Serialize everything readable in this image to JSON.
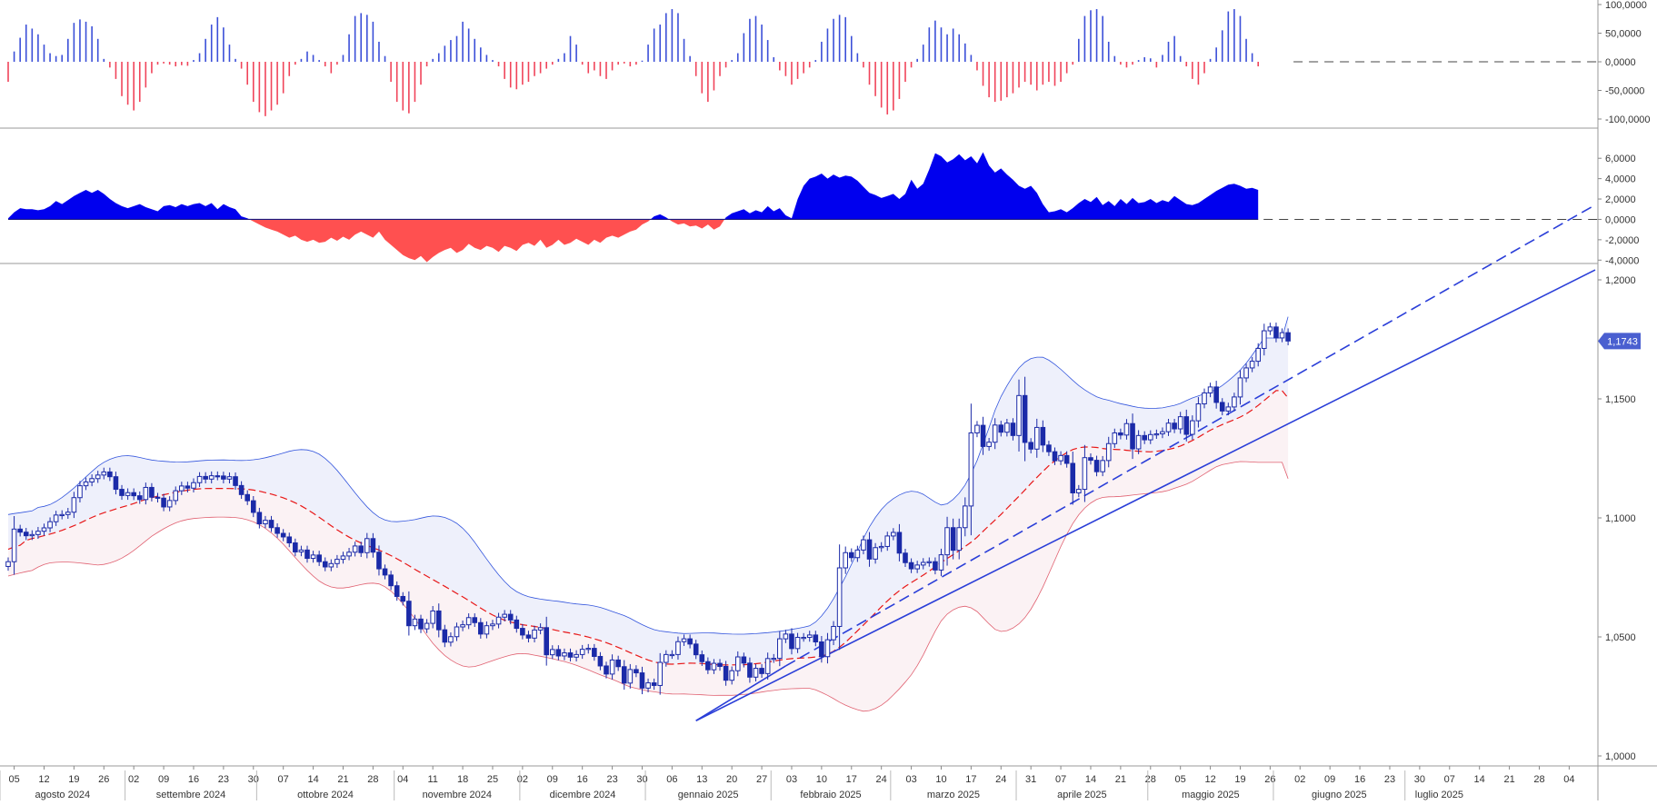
{
  "colors": {
    "up": "#3b4fd8",
    "down": "#f0445a",
    "area_up": "#0000ee",
    "area_down": "#ff5050",
    "candle_body": "#1b2aa8",
    "band_upper": "#3355dd",
    "band_lower": "#e06070",
    "band_fill_top": "#eef0fb",
    "band_fill_bottom": "#fbf2f4",
    "mid_line": "#e81818",
    "trend": "#2a3ed8",
    "axis": "#888888",
    "grid": "#dddddd"
  },
  "osc1": {
    "ticks": [
      "100,0000",
      "50,0000",
      "0,0000",
      "-50,0000",
      "-100,0000"
    ]
  },
  "osc2": {
    "ticks": [
      "6,0000",
      "4,0000",
      "2,0000",
      "0,0000",
      "-2,0000",
      "-4,0000"
    ]
  },
  "price": {
    "ticks": [
      "1,2000",
      "1,1500",
      "1,1000",
      "1,0500",
      "1,0000"
    ],
    "last_label": "1,1743"
  },
  "x_axis": {
    "days": [
      "05",
      "12",
      "19",
      "26",
      "02",
      "09",
      "16",
      "23",
      "30",
      "07",
      "14",
      "21",
      "28",
      "04",
      "11",
      "18",
      "25",
      "02",
      "09",
      "16",
      "23",
      "30",
      "06",
      "13",
      "20",
      "27",
      "03",
      "10",
      "17",
      "24",
      "03",
      "10",
      "17",
      "24",
      "31",
      "07",
      "14",
      "21",
      "28",
      "05",
      "12",
      "19",
      "26",
      "02",
      "09",
      "16",
      "23",
      "30",
      "07",
      "14",
      "21",
      "28",
      "04"
    ],
    "months": [
      "agosto 2024",
      "settembre 2024",
      "ottobre 2024",
      "novembre 2024",
      "dicembre 2024",
      "gennaio 2025",
      "febbraio 2025",
      "marzo 2025",
      "aprile 2025",
      "maggio 2025",
      "giugno 2025",
      "luglio 2025"
    ]
  },
  "chart_data": [
    {
      "type": "bar",
      "panel": "oscillator-histogram",
      "ylim": [
        -100,
        100
      ],
      "values": [
        -35,
        18,
        42,
        65,
        58,
        48,
        30,
        15,
        10,
        12,
        40,
        68,
        74,
        70,
        62,
        40,
        5,
        -10,
        -30,
        -60,
        -75,
        -85,
        -70,
        -45,
        -20,
        -5,
        -3,
        -5,
        -8,
        -6,
        -7,
        3,
        15,
        40,
        65,
        78,
        60,
        30,
        5,
        -12,
        -40,
        -70,
        -88,
        -95,
        -85,
        -75,
        -55,
        -25,
        -5,
        5,
        18,
        12,
        3,
        -8,
        -20,
        -5,
        12,
        48,
        80,
        85,
        82,
        70,
        35,
        10,
        -35,
        -70,
        -85,
        -90,
        -70,
        -40,
        -8,
        5,
        15,
        28,
        38,
        45,
        70,
        58,
        40,
        25,
        12,
        3,
        -8,
        -30,
        -45,
        -48,
        -40,
        -35,
        -25,
        -20,
        -12,
        -5,
        5,
        15,
        45,
        30,
        -5,
        -20,
        -15,
        -25,
        -30,
        -15,
        -5,
        -3,
        -8,
        -5,
        2,
        30,
        58,
        65,
        85,
        92,
        85,
        40,
        10,
        -25,
        -55,
        -70,
        -50,
        -25,
        -10,
        3,
        15,
        50,
        75,
        80,
        65,
        38,
        8,
        -15,
        -25,
        -40,
        -30,
        -20,
        -10,
        3,
        35,
        58,
        75,
        82,
        78,
        45,
        15,
        -10,
        -40,
        -60,
        -80,
        -92,
        -85,
        -65,
        -35,
        -10,
        5,
        30,
        60,
        72,
        60,
        48,
        58,
        48,
        32,
        12,
        -15,
        -42,
        -62,
        -70,
        -68,
        -62,
        -55,
        -45,
        -35,
        -40,
        -50,
        -40,
        -35,
        -42,
        -35,
        -20,
        -5,
        40,
        80,
        90,
        92,
        80,
        35,
        10,
        -5,
        -10,
        -5,
        3,
        8,
        6,
        -10,
        12,
        35,
        45,
        10,
        -8,
        -30,
        -40,
        -20,
        5,
        25,
        55,
        88,
        92,
        80,
        40,
        15,
        -8
      ]
    },
    {
      "type": "area",
      "panel": "oscillator-area",
      "ylim": [
        -5,
        7
      ],
      "values": [
        0.1,
        0.7,
        1.1,
        1.0,
        1.0,
        0.9,
        1.0,
        1.3,
        1.8,
        1.5,
        1.9,
        2.3,
        2.6,
        2.9,
        2.6,
        2.9,
        2.5,
        2.0,
        1.6,
        1.3,
        1.1,
        1.3,
        1.5,
        1.2,
        1.0,
        0.8,
        1.3,
        1.4,
        1.2,
        1.5,
        1.3,
        1.5,
        1.6,
        1.3,
        1.6,
        1.0,
        1.5,
        1.2,
        1.0,
        0.3,
        0.1,
        -0.2,
        -0.5,
        -0.8,
        -1.0,
        -1.2,
        -1.5,
        -1.8,
        -1.6,
        -2.0,
        -2.2,
        -2.0,
        -2.3,
        -2.2,
        -1.8,
        -2.1,
        -1.7,
        -2.0,
        -1.5,
        -1.2,
        -1.5,
        -1.8,
        -1.2,
        -2.0,
        -2.5,
        -3.0,
        -3.5,
        -3.8,
        -4.0,
        -3.6,
        -4.2,
        -3.7,
        -3.3,
        -3.0,
        -2.8,
        -3.3,
        -3.0,
        -2.4,
        -2.8,
        -3.0,
        -2.6,
        -2.8,
        -3.2,
        -2.6,
        -2.8,
        -3.1,
        -2.5,
        -2.3,
        -2.6,
        -2.0,
        -2.8,
        -2.5,
        -2.0,
        -2.5,
        -2.3,
        -1.9,
        -2.2,
        -2.5,
        -2.0,
        -2.3,
        -1.8,
        -1.6,
        -1.8,
        -1.5,
        -1.2,
        -1.0,
        -0.5,
        -0.2,
        0.3,
        0.5,
        0.2,
        -0.2,
        -0.5,
        -0.4,
        -0.7,
        -0.6,
        -0.9,
        -0.5,
        -1.0,
        -0.7,
        0.2,
        0.6,
        0.8,
        1.0,
        0.6,
        0.9,
        0.7,
        1.3,
        0.8,
        1.1,
        0.4,
        0.1,
        2.0,
        3.3,
        4.0,
        4.2,
        4.5,
        4.0,
        4.4,
        4.1,
        4.3,
        4.2,
        3.8,
        3.2,
        2.6,
        2.4,
        2.1,
        2.3,
        2.5,
        2.0,
        2.5,
        3.9,
        3.0,
        3.5,
        4.9,
        6.5,
        6.2,
        5.6,
        5.9,
        6.4,
        5.8,
        6.2,
        5.5,
        6.6,
        5.3,
        4.6,
        5.0,
        4.4,
        3.9,
        3.3,
        3.0,
        3.3,
        2.6,
        1.5,
        0.7,
        0.8,
        1.0,
        0.7,
        1.1,
        1.6,
        2.0,
        1.7,
        2.2,
        1.4,
        1.8,
        1.3,
        2.0,
        1.5,
        2.1,
        1.6,
        1.7,
        2.0,
        1.6,
        1.9,
        1.7,
        2.3,
        1.9,
        1.5,
        1.4,
        1.6,
        2.0,
        2.4,
        2.8,
        3.1,
        3.4,
        3.5,
        3.3,
        3.0,
        3.1,
        2.9
      ],
      "extends_to_x_index": 252
    },
    {
      "type": "candlestick",
      "panel": "price",
      "ylim": [
        1.0,
        1.2
      ],
      "close": [
        1.0816,
        1.0953,
        1.094,
        1.0925,
        1.093,
        1.0944,
        1.0958,
        1.0984,
        1.1012,
        1.1014,
        1.1024,
        1.1085,
        1.1135,
        1.1151,
        1.1165,
        1.118,
        1.1193,
        1.1173,
        1.112,
        1.1094,
        1.1106,
        1.1093,
        1.1077,
        1.1128,
        1.1087,
        1.1083,
        1.1046,
        1.1073,
        1.1114,
        1.1134,
        1.1125,
        1.1148,
        1.1174,
        1.1163,
        1.1177,
        1.1176,
        1.1163,
        1.1173,
        1.1136,
        1.1098,
        1.1072,
        1.1023,
        1.0975,
        1.099,
        1.0959,
        1.0935,
        1.092,
        1.0895,
        1.0857,
        1.0865,
        1.083,
        1.0844,
        1.0816,
        1.0794,
        1.0808,
        1.0826,
        1.084,
        1.0856,
        1.0882,
        1.0854,
        1.0913,
        1.0856,
        1.0786,
        1.076,
        1.0715,
        1.067,
        1.065,
        1.0547,
        1.0575,
        1.0534,
        1.0557,
        1.0609,
        1.053,
        1.0478,
        1.0501,
        1.0542,
        1.0551,
        1.0581,
        1.056,
        1.0512,
        1.0547,
        1.0554,
        1.0583,
        1.0595,
        1.0571,
        1.0536,
        1.0508,
        1.0495,
        1.0529,
        1.0539,
        1.0425,
        1.0447,
        1.042,
        1.0433,
        1.0415,
        1.0426,
        1.0448,
        1.0452,
        1.0418,
        1.0378,
        1.0344,
        1.0403,
        1.0375,
        1.0306,
        1.0363,
        1.0349,
        1.0285,
        1.0307,
        1.0296,
        1.0393,
        1.0426,
        1.0426,
        1.048,
        1.0492,
        1.047,
        1.0425,
        1.0396,
        1.0362,
        1.0389,
        1.0376,
        1.0318,
        1.0358,
        1.0416,
        1.039,
        1.0331,
        1.0368,
        1.0346,
        1.0409,
        1.041,
        1.0492,
        1.0512,
        1.0451,
        1.0498,
        1.0498,
        1.0508,
        1.0479,
        1.0417,
        1.0488,
        1.0544,
        1.079,
        1.0854,
        1.0833,
        1.0865,
        1.0908,
        1.0827,
        1.0875,
        1.088,
        1.0924,
        1.0939,
        1.0852,
        1.0812,
        1.0786,
        1.0802,
        1.0813,
        1.0816,
        1.0781,
        1.0845,
        1.0959,
        1.0864,
        1.0959,
        1.105,
        1.1357,
        1.1389,
        1.13,
        1.1318,
        1.139,
        1.136,
        1.1398,
        1.1346,
        1.1514,
        1.1317,
        1.1289,
        1.138,
        1.1306,
        1.1278,
        1.124,
        1.1262,
        1.1229,
        1.1105,
        1.112,
        1.1253,
        1.1242,
        1.1194,
        1.1241,
        1.1312,
        1.1357,
        1.1348,
        1.1396,
        1.129,
        1.1346,
        1.1328,
        1.135,
        1.1353,
        1.1362,
        1.1398,
        1.1374,
        1.1425,
        1.1351,
        1.1408,
        1.1479,
        1.1525,
        1.155,
        1.1485,
        1.1449,
        1.1466,
        1.1508,
        1.1588,
        1.163,
        1.1658,
        1.1712,
        1.1786,
        1.1802,
        1.1756,
        1.1778,
        1.1743
      ],
      "upper_band_end": 1.1845,
      "mid_end": 1.1504,
      "lower_band_end": 1.1165
    }
  ]
}
